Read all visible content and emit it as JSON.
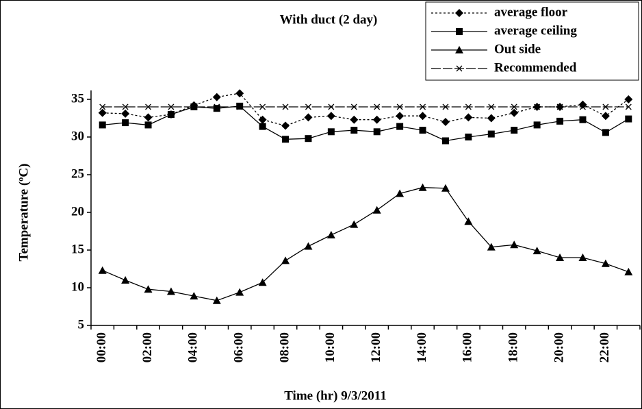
{
  "chart_data": {
    "type": "line",
    "title": "With duct (2 day)",
    "xlabel": "Time (hr) 9/3/2011",
    "ylabel": "Temperature (ºC)",
    "categories": [
      "00:00",
      null,
      "02:00",
      null,
      "04:00",
      null,
      "06:00",
      null,
      "08:00",
      null,
      "10:00",
      null,
      "12:00",
      null,
      "14:00",
      null,
      "16:00",
      null,
      "18:00",
      null,
      "20:00",
      null,
      "22:00",
      null
    ],
    "ylim": [
      5,
      35
    ],
    "yticks": [
      5,
      10,
      15,
      20,
      25,
      30,
      35
    ],
    "grid": false,
    "legend": "top-right",
    "series": [
      {
        "name": "average floor",
        "color": "#000000",
        "marker": "diamond",
        "dash": "dotted",
        "values": [
          33.2,
          33.1,
          32.6,
          33.0,
          34.2,
          35.3,
          35.8,
          32.3,
          31.5,
          32.6,
          32.8,
          32.3,
          32.3,
          32.8,
          32.8,
          32.0,
          32.6,
          32.5,
          33.2,
          34.0,
          34.0,
          34.3,
          32.8,
          35.0
        ]
      },
      {
        "name": "average ceiling",
        "color": "#000000",
        "marker": "square",
        "dash": "solid",
        "values": [
          31.6,
          31.9,
          31.6,
          33.0,
          34.0,
          33.8,
          34.1,
          31.4,
          29.7,
          29.8,
          30.7,
          30.9,
          30.7,
          31.4,
          30.9,
          29.5,
          30.0,
          30.4,
          30.9,
          31.6,
          32.1,
          32.3,
          30.6,
          32.4
        ]
      },
      {
        "name": "Out side",
        "color": "#000000",
        "marker": "triangle",
        "dash": "solid",
        "values": [
          12.3,
          11.0,
          9.8,
          9.5,
          8.9,
          8.3,
          9.4,
          10.7,
          13.6,
          15.5,
          17.0,
          18.4,
          20.3,
          22.5,
          23.3,
          23.2,
          18.8,
          15.4,
          15.7,
          14.9,
          14.0,
          14.0,
          13.2,
          12.1
        ]
      },
      {
        "name": "Recommended",
        "color": "#000000",
        "marker": "x",
        "dash": "longdash",
        "values": [
          34,
          34,
          34,
          34,
          34,
          34,
          34,
          34,
          34,
          34,
          34,
          34,
          34,
          34,
          34,
          34,
          34,
          34,
          34,
          34,
          34,
          34,
          34,
          34
        ]
      }
    ]
  }
}
